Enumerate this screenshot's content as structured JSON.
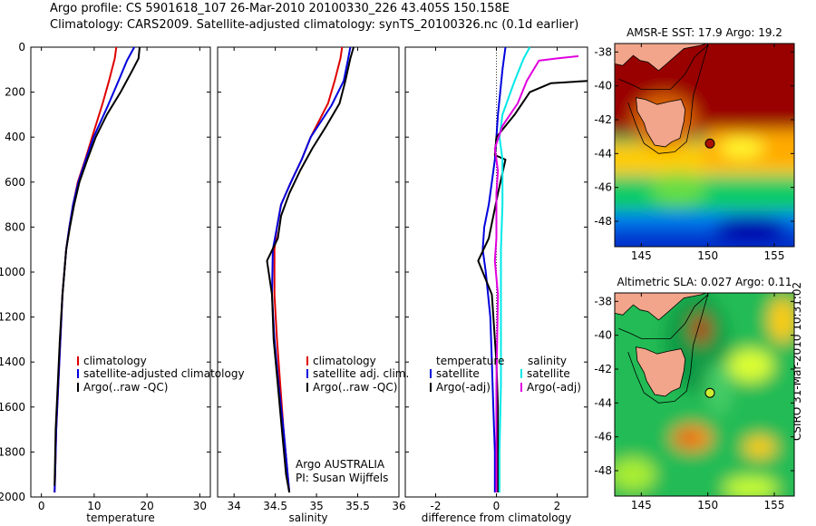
{
  "title_line1": "Argo profile: CS 5901618_107 26-Mar-2010 20100330_226 43.405S 150.158E",
  "title_line2": "Climatology: CARS2009. Satellite-adjusted climatology: synTS_20100326.nc (0.1d earlier)",
  "side_label": "CSIRO 31-Mar-2010 10:31:02",
  "colors": {
    "climatology": "#e00000",
    "satellite": "#0000dd",
    "argo": "#000000",
    "sal_satellite": "#00e8e8",
    "sal_argo": "#e000e0"
  },
  "chart_data": [
    {
      "type": "line",
      "title": "",
      "xlabel": "temperature",
      "ylabel": "",
      "xlim": [
        -2,
        32
      ],
      "ylim": [
        2000,
        0
      ],
      "xticks": [
        "0",
        "10",
        "20",
        "30"
      ],
      "yticks": [
        "0",
        "200",
        "400",
        "600",
        "800",
        "1000",
        "1200",
        "1400",
        "1600",
        "1800",
        "2000"
      ],
      "legend": [
        "climatology",
        "satellite-adjusted climatology",
        "Argo(..raw -QC)"
      ],
      "series": [
        {
          "name": "climatology",
          "x": [
            14.2,
            13.9,
            12.8,
            11.6,
            9.6,
            8.3,
            6.9,
            6.0,
            5.3,
            4.7,
            4.0,
            3.6,
            3.2,
            2.8,
            2.6,
            2.5
          ],
          "y": [
            0,
            50,
            150,
            250,
            400,
            500,
            600,
            700,
            800,
            900,
            1100,
            1300,
            1500,
            1700,
            1900,
            1980
          ]
        },
        {
          "name": "satellite-adjusted climatology",
          "x": [
            17.6,
            16.2,
            14.6,
            12.6,
            9.9,
            8.4,
            7.0,
            6.0,
            5.3,
            4.7,
            4.0,
            3.6,
            3.2,
            2.8,
            2.6,
            2.5
          ],
          "y": [
            0,
            60,
            150,
            260,
            400,
            500,
            600,
            700,
            800,
            900,
            1100,
            1300,
            1500,
            1700,
            1900,
            1980
          ]
        },
        {
          "name": "Argo(..raw -QC)",
          "x": [
            18.6,
            18.4,
            17.3,
            15.0,
            12.4,
            10.3,
            8.7,
            7.2,
            6.2,
            5.4,
            4.7,
            4.0,
            3.5,
            3.1,
            2.7,
            2.5
          ],
          "y": [
            0,
            50,
            100,
            200,
            300,
            400,
            500,
            600,
            700,
            800,
            900,
            1100,
            1300,
            1500,
            1700,
            1950
          ]
        }
      ]
    },
    {
      "type": "line",
      "title": "",
      "xlabel": "salinity",
      "ylabel": "",
      "xlim": [
        33.8,
        36.0
      ],
      "xticks": [
        "34",
        "34.5",
        "35",
        "35.5",
        "36"
      ],
      "legend": [
        "climatology",
        "satellite adj. clim.",
        "Argo(..raw -QC)"
      ],
      "annotations": [
        "Argo AUSTRALIA",
        "PI: Susan Wijffels"
      ],
      "series": [
        {
          "name": "climatology",
          "x": [
            35.31,
            35.29,
            35.22,
            35.14,
            34.93,
            34.82,
            34.69,
            34.57,
            34.52,
            34.49,
            34.49,
            34.52,
            34.56,
            34.6,
            34.65,
            34.67
          ],
          "y": [
            0,
            50,
            150,
            250,
            400,
            500,
            600,
            700,
            800,
            900,
            1100,
            1300,
            1500,
            1700,
            1900,
            1980
          ]
        },
        {
          "name": "satellite adj. clim.",
          "x": [
            35.41,
            35.38,
            35.33,
            35.18,
            34.93,
            34.82,
            34.69,
            34.57,
            34.52,
            34.47,
            34.46,
            34.49,
            34.54,
            34.6,
            34.65,
            34.67
          ],
          "y": [
            0,
            60,
            150,
            260,
            400,
            500,
            600,
            700,
            800,
            900,
            1100,
            1300,
            1500,
            1700,
            1900,
            1980
          ]
        },
        {
          "name": "Argo(..raw -QC)",
          "x": [
            35.45,
            35.41,
            35.35,
            35.28,
            35.12,
            34.95,
            34.8,
            34.67,
            34.57,
            34.53,
            34.4,
            34.46,
            34.48,
            34.53,
            34.58,
            34.63,
            34.67
          ],
          "y": [
            0,
            50,
            150,
            250,
            350,
            450,
            550,
            650,
            750,
            850,
            950,
            1100,
            1300,
            1500,
            1700,
            1900,
            1980
          ]
        }
      ]
    },
    {
      "type": "line",
      "title": "",
      "xlabel": "difference from climatology",
      "ylabel": "",
      "xlim": [
        -3,
        3
      ],
      "xticks": [
        "-2",
        "0",
        "2"
      ],
      "legend": [
        "temperature",
        "satellite",
        "Argo(-adj)",
        "salinity",
        "satellite",
        "Argo(-adj)"
      ],
      "series": [
        {
          "name": "temperature satellite",
          "x": [
            0.3,
            0.2,
            0.05,
            0.0,
            -0.05,
            -0.15,
            -0.25,
            -0.4,
            -0.45,
            -0.35,
            -0.2,
            -0.15,
            -0.1,
            -0.05,
            -0.05
          ],
          "y": [
            0,
            100,
            300,
            400,
            500,
            600,
            700,
            800,
            900,
            1000,
            1200,
            1400,
            1600,
            1800,
            1980
          ]
        },
        {
          "name": "temperature Argo(-adj)",
          "x": [
            3.0,
            1.8,
            1.1,
            0.6,
            0.0,
            -0.05,
            0.3,
            0.05,
            -0.25,
            -0.6,
            -0.15,
            0.0,
            0.05,
            0.05,
            0.05
          ],
          "y": [
            150,
            160,
            200,
            300,
            400,
            480,
            500,
            650,
            850,
            950,
            1100,
            1400,
            1600,
            1800,
            1980
          ]
        },
        {
          "name": "salinity satellite",
          "x": [
            1.1,
            0.9,
            0.6,
            0.2,
            0.1,
            0.2,
            0.2,
            0.15,
            0.15,
            0.15,
            0.15,
            0.1,
            0.1
          ],
          "y": [
            0,
            50,
            150,
            300,
            400,
            500,
            700,
            900,
            1100,
            1300,
            1500,
            1800,
            1980
          ]
        },
        {
          "name": "salinity Argo(-adj)",
          "x": [
            2.7,
            2.0,
            1.4,
            1.0,
            0.7,
            0.2,
            -0.05,
            0.05,
            0.0,
            0.0,
            -0.05,
            0.05,
            0.0,
            0.0
          ],
          "y": [
            40,
            50,
            60,
            150,
            250,
            350,
            450,
            550,
            650,
            850,
            950,
            1100,
            1500,
            1980
          ]
        }
      ]
    },
    {
      "type": "heatmap",
      "title": "AMSR-E SST: 17.9 Argo: 19.2",
      "xlim": [
        143,
        156.5
      ],
      "ylim": [
        -49.5,
        -37.5
      ],
      "xticks": [
        "145",
        "150",
        "155"
      ],
      "yticks": [
        "-38",
        "-40",
        "-42",
        "-44",
        "-46",
        "-48"
      ],
      "marker": {
        "lon": 150.158,
        "lat": -43.405
      }
    },
    {
      "type": "heatmap",
      "title": "Altimetric SLA: 0.027 Argo: 0.11",
      "xlim": [
        143,
        156.5
      ],
      "ylim": [
        -49.5,
        -37.5
      ],
      "xticks": [
        "145",
        "150",
        "155"
      ],
      "yticks": [
        "-38",
        "-40",
        "-42",
        "-44",
        "-46",
        "-48"
      ],
      "marker": {
        "lon": 150.158,
        "lat": -43.405
      }
    }
  ]
}
